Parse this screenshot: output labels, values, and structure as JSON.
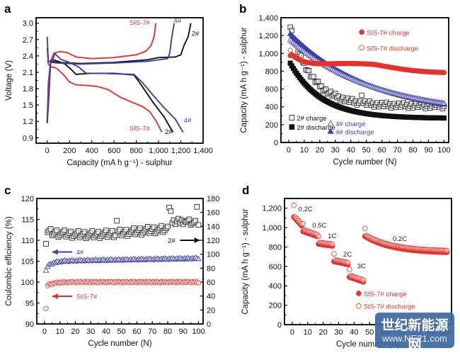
{
  "panel_labels": [
    "a",
    "b",
    "c",
    "d"
  ],
  "colors": {
    "red": "#e8312b",
    "black": "#111111",
    "blue": "#3b3fa8",
    "gray": "#555555"
  },
  "watermark": {
    "line1": "世纪新能源网",
    "line2": "www.NE21.com"
  },
  "chart_data": [
    {
      "id": "a",
      "type": "line",
      "title": "",
      "xlabel": "Capacity (mA h g⁻¹) - sulphur",
      "ylabel": "Voltage (V)",
      "xlim": [
        -100,
        1400
      ],
      "ylim": [
        0.8,
        3.1
      ],
      "xticks": [
        0,
        200,
        400,
        600,
        800,
        1000,
        1200,
        1400
      ],
      "xtick_labels": [
        "0",
        "200",
        "400",
        "600",
        "800",
        "1,000",
        "1,200",
        "1,400"
      ],
      "yticks": [
        0.9,
        1.2,
        1.5,
        1.8,
        2.1,
        2.4,
        2.7,
        3.0
      ],
      "ytick_labels": [
        "0.9",
        "1.2",
        "1.5",
        "1.8",
        "2.1",
        "2.4",
        "2.7",
        "3.0"
      ],
      "series": [
        {
          "name": "SIS-7# discharge",
          "color": "red",
          "points": [
            [
              0,
              2.55
            ],
            [
              10,
              2.25
            ],
            [
              30,
              2.2
            ],
            [
              80,
              2.18
            ],
            [
              150,
              2.05
            ],
            [
              200,
              1.92
            ],
            [
              260,
              1.87
            ],
            [
              350,
              1.86
            ],
            [
              450,
              1.84
            ],
            [
              550,
              1.78
            ],
            [
              650,
              1.65
            ],
            [
              750,
              1.56
            ],
            [
              850,
              1.48
            ],
            [
              920,
              1.38
            ],
            [
              980,
              1.2
            ],
            [
              1030,
              1.0
            ]
          ]
        },
        {
          "name": "SIS-7# charge",
          "color": "red",
          "points": [
            [
              0,
              1.2
            ],
            [
              10,
              1.9
            ],
            [
              30,
              2.3
            ],
            [
              60,
              2.45
            ],
            [
              120,
              2.48
            ],
            [
              180,
              2.46
            ],
            [
              260,
              2.38
            ],
            [
              400,
              2.35
            ],
            [
              600,
              2.37
            ],
            [
              800,
              2.42
            ],
            [
              880,
              2.48
            ],
            [
              930,
              2.58
            ],
            [
              960,
              2.75
            ],
            [
              975,
              3.0
            ]
          ]
        },
        {
          "name": "2# discharge",
          "color": "black",
          "points": [
            [
              0,
              2.3
            ],
            [
              20,
              2.3
            ],
            [
              50,
              2.33
            ],
            [
              100,
              2.3
            ],
            [
              160,
              2.25
            ],
            [
              200,
              2.18
            ],
            [
              260,
              2.06
            ],
            [
              300,
              2.07
            ],
            [
              400,
              2.08
            ],
            [
              600,
              2.08
            ],
            [
              780,
              2.05
            ],
            [
              850,
              1.85
            ],
            [
              950,
              1.55
            ],
            [
              1050,
              1.28
            ],
            [
              1130,
              1.0
            ]
          ]
        },
        {
          "name": "2# charge",
          "color": "black",
          "points": [
            [
              0,
              1.17
            ],
            [
              10,
              1.5
            ],
            [
              30,
              2.3
            ],
            [
              100,
              2.28
            ],
            [
              300,
              2.26
            ],
            [
              600,
              2.28
            ],
            [
              900,
              2.33
            ],
            [
              1000,
              2.37
            ],
            [
              1150,
              2.38
            ],
            [
              1200,
              2.42
            ],
            [
              1230,
              2.6
            ],
            [
              1265,
              2.75
            ],
            [
              1290,
              3.0
            ]
          ]
        },
        {
          "name": "4# discharge",
          "color": "blue",
          "points": [
            [
              0,
              2.75
            ],
            [
              10,
              2.3
            ],
            [
              40,
              2.3
            ],
            [
              70,
              2.44
            ],
            [
              120,
              2.34
            ],
            [
              200,
              2.28
            ],
            [
              280,
              2.2
            ],
            [
              350,
              2.08
            ],
            [
              500,
              2.08
            ],
            [
              780,
              2.06
            ],
            [
              860,
              1.9
            ],
            [
              950,
              1.68
            ],
            [
              1050,
              1.45
            ],
            [
              1150,
              1.24
            ],
            [
              1220,
              1.0
            ]
          ]
        },
        {
          "name": "4# charge",
          "color": "blue",
          "points": [
            [
              0,
              1.2
            ],
            [
              10,
              1.5
            ],
            [
              30,
              2.28
            ],
            [
              100,
              2.27
            ],
            [
              300,
              2.25
            ],
            [
              600,
              2.27
            ],
            [
              900,
              2.3
            ],
            [
              1080,
              2.35
            ],
            [
              1100,
              2.45
            ],
            [
              1120,
              2.75
            ],
            [
              1140,
              3.0
            ]
          ]
        }
      ],
      "annotations": [
        {
          "text": "SIS-7#",
          "color": "red",
          "x": 830,
          "y": 2.97
        },
        {
          "text": "4#",
          "color": "blue",
          "x": 1170,
          "y": 3.0
        },
        {
          "text": "2#",
          "color": "black",
          "x": 1330,
          "y": 2.77
        },
        {
          "text": "SIS-7#",
          "color": "red",
          "x": 830,
          "y": 1.03
        },
        {
          "text": "2#",
          "color": "black",
          "x": 1090,
          "y": 0.97
        },
        {
          "text": "4#",
          "color": "blue",
          "x": 1260,
          "y": 1.18
        }
      ]
    },
    {
      "id": "b",
      "type": "scatter",
      "xlabel": "Cycle number (N)",
      "ylabel": "Capacity (mA h g⁻¹) - sulphur",
      "xlim": [
        -5,
        103
      ],
      "ylim": [
        0,
        1400
      ],
      "xticks": [
        0,
        10,
        20,
        30,
        40,
        50,
        60,
        70,
        80,
        90,
        100
      ],
      "yticks": [
        0,
        200,
        400,
        600,
        800,
        1000,
        1200,
        1400
      ],
      "ytick_labels": [
        "0",
        "200",
        "400",
        "600",
        "800",
        "1,000",
        "1,200",
        "1,400"
      ],
      "series": [
        {
          "name": "SIS-7# charge",
          "color": "red",
          "marker": "circle-filled",
          "model": {
            "type": "sis",
            "start": 975
          }
        },
        {
          "name": "SIS-7# discharge",
          "color": "red",
          "marker": "circle-open",
          "model": {
            "type": "sis",
            "start": 1035
          }
        },
        {
          "name": "4# charge",
          "color": "blue",
          "marker": "triangle-open",
          "model": {
            "type": "decay",
            "y1": 1150,
            "yinf": 300,
            "tau": 55
          }
        },
        {
          "name": "4# discharge",
          "color": "blue",
          "marker": "triangle-filled",
          "model": {
            "type": "decay",
            "y1": 1220,
            "yinf": 290,
            "tau": 52
          }
        },
        {
          "name": "2# charge",
          "color": "black",
          "marker": "square-open",
          "model": {
            "type": "decay2",
            "y1": 1300,
            "yinf": 410,
            "tau": 14
          }
        },
        {
          "name": "2# discharge",
          "color": "black",
          "marker": "square-filled",
          "model": {
            "type": "decay2",
            "y1": 890,
            "yinf": 270,
            "tau": 20
          }
        }
      ],
      "key_values": {
        "SIS-7# discharge at 100": 770,
        "4# discharge at 100": 460,
        "2# charge at 100": 420,
        "2# discharge at 100": 285,
        "2# charge outlier at 47": 530
      },
      "legend": [
        {
          "text": "SIS-7# charge",
          "color": "red",
          "marker": "circle-filled"
        },
        {
          "text": "SIS-7# discharge",
          "color": "red",
          "marker": "circle-open"
        },
        {
          "text": "2# charge",
          "color": "black",
          "marker": "square-open"
        },
        {
          "text": "2# discharge",
          "color": "black",
          "marker": "square-filled"
        },
        {
          "text": "4# charge",
          "color": "blue",
          "marker": "triangle-open"
        },
        {
          "text": "4# discharge",
          "color": "blue",
          "marker": "triangle-filled"
        }
      ]
    },
    {
      "id": "c",
      "type": "scatter",
      "xlabel": "Cycle number (N)",
      "ylabel": "Coulombic efficiency (%)",
      "xlim": [
        -5,
        103
      ],
      "ylim": [
        90,
        120
      ],
      "ylim_right": [
        0,
        180
      ],
      "xticks": [
        0,
        10,
        20,
        30,
        40,
        50,
        60,
        70,
        80,
        90,
        100
      ],
      "yticks": [
        90,
        95,
        100,
        105,
        110,
        115,
        120
      ],
      "yticks_right": [
        0,
        20,
        40,
        60,
        80,
        100,
        120,
        140,
        160,
        180
      ],
      "series": [
        {
          "name": "SIS-7#",
          "color": "red",
          "marker": "circle-open",
          "axis": "left",
          "first": 93.7,
          "level": 100.0,
          "start": 99.2
        },
        {
          "name": "4#",
          "color": "blue",
          "marker": "triangle-open",
          "axis": "left",
          "first": 102.8,
          "level": 105.0,
          "start": 103.8
        },
        {
          "name": "2#",
          "color": "black",
          "marker": "square-open",
          "axis": "right",
          "first": 115,
          "level": 130,
          "outliers": [
            [
              47,
              148
            ],
            [
              81,
              167
            ],
            [
              82,
              162
            ],
            [
              99,
              168
            ]
          ]
        }
      ],
      "annotations": [
        {
          "text": "4#",
          "color": "blue",
          "arrow": "left"
        },
        {
          "text": "SIS-7#",
          "color": "red",
          "arrow": "left"
        },
        {
          "text": "2#",
          "color": "black",
          "arrow": "right"
        }
      ]
    },
    {
      "id": "d",
      "type": "scatter",
      "xlabel": "Cycle number (N)",
      "ylabel": "Capacity (mA h g⁻¹) - sulphur",
      "xlim": [
        -5,
        103
      ],
      "ylim": [
        0,
        1300
      ],
      "xticks": [
        0,
        10,
        20,
        30,
        40,
        50,
        60,
        70,
        80,
        90,
        100
      ],
      "yticks": [
        0,
        200,
        400,
        600,
        800,
        1000,
        1200
      ],
      "ytick_labels": [
        "0",
        "200",
        "400",
        "600",
        "800",
        "1,000",
        "1,200"
      ],
      "segments": [
        {
          "rate": "0.2C",
          "from": 1,
          "to": 6,
          "start": 1110,
          "end": 1020,
          "first_discharge": 1230
        },
        {
          "rate": "0.5C",
          "from": 7,
          "to": 16,
          "start": 960,
          "end": 910
        },
        {
          "rate": "1C",
          "from": 17,
          "to": 26,
          "start": 830,
          "end": 810
        },
        {
          "rate": "2C",
          "from": 27,
          "to": 36,
          "start": 650,
          "end": 620
        },
        {
          "rate": "3C",
          "from": 37,
          "to": 46,
          "start": 490,
          "end": 440
        },
        {
          "rate": "0.2C",
          "from": 47,
          "to": 100,
          "start": 910,
          "end": 745
        }
      ],
      "legend": [
        {
          "text": "SIS-7# charge",
          "color": "red",
          "marker": "circle-filled"
        },
        {
          "text": "SIS-7# discharge",
          "color": "red",
          "marker": "circle-open"
        }
      ]
    }
  ]
}
